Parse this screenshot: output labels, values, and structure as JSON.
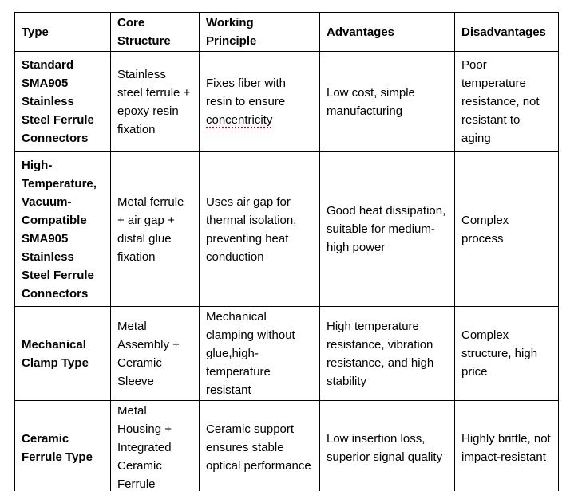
{
  "colors": {
    "background": "#ffffff",
    "text": "#000000",
    "table_border": "#000000",
    "spellcheck_underline": "#cc0000"
  },
  "table": {
    "columns": [
      "Type",
      "Core\nStructure",
      "Working\nPrinciple",
      "Advantages",
      "Disadvantages"
    ],
    "rows": [
      {
        "type": "Standard SMA905 Stainless Steel Ferrule Connectors",
        "core_structure": "Stainless steel ferrule + epoxy resin fixation",
        "working_principle": {
          "text": "Fixes fiber with resin to ensure",
          "spellcheck_flagged": "concentricity"
        },
        "advantages": "Low cost, simple manufacturing",
        "disadvantages": "Poor temperature resistance, not resistant to aging"
      },
      {
        "type": "High-Temperature, Vacuum-Compatible SMA905 Stainless Steel Ferrule Connectors",
        "core_structure": "Metal ferrule + air gap + distal glue fixation",
        "working_principle": "Uses air gap for thermal isolation, preventing heat conduction",
        "advantages": "Good heat dissipation, suitable for medium-high power",
        "disadvantages": "Complex process"
      },
      {
        "type": "Mechanical Clamp Type",
        "core_structure": "Metal Assembly + Ceramic Sleeve",
        "working_principle": "Mechanical clamping without glue,high-temperature resistant",
        "advantages": "High temperature resistance, vibration resistance, and high stability",
        "disadvantages": "Complex structure, high price"
      },
      {
        "type": "Ceramic Ferrule Type",
        "core_structure": "Metal Housing + Integrated Ceramic Ferrule",
        "working_principle": "Ceramic support ensures stable optical performance",
        "advantages": "Low insertion loss, superior signal quality",
        "disadvantages": "Highly brittle, not impact-resistant"
      }
    ]
  }
}
